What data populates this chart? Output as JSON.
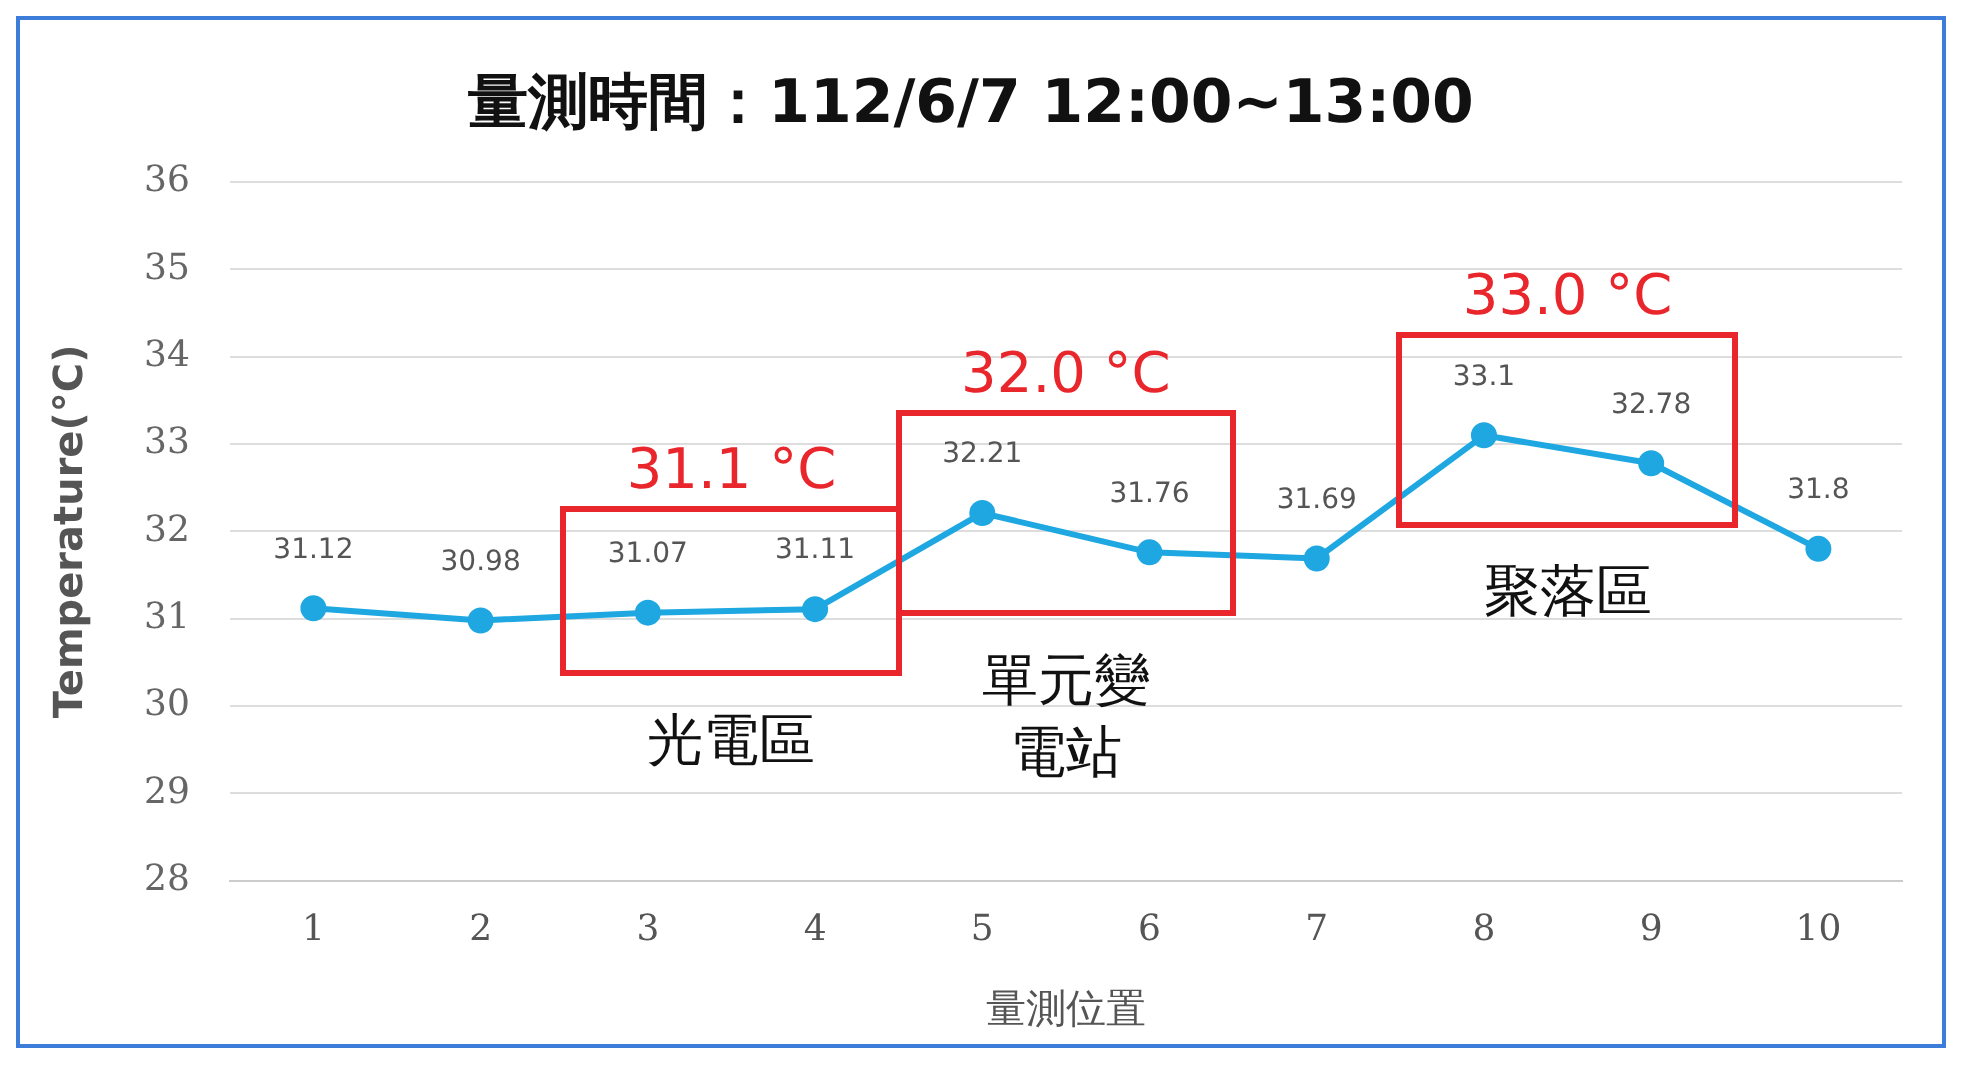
{
  "chart_data": {
    "type": "line",
    "title": "量測時間：112/6/7 12:00~13:00",
    "xlabel": "量測位置",
    "ylabel": "Temperature(°C)",
    "categories": [
      "1",
      "2",
      "3",
      "4",
      "5",
      "6",
      "7",
      "8",
      "9",
      "10"
    ],
    "series": [
      {
        "color": "#1ea7e1",
        "values": [
          31.12,
          30.98,
          31.07,
          31.11,
          32.21,
          31.76,
          31.69,
          33.1,
          32.78,
          31.8
        ]
      }
    ],
    "ylim": [
      28,
      36
    ],
    "yticks": [
      28,
      29,
      30,
      31,
      32,
      33,
      34,
      35,
      36
    ],
    "grid": "y",
    "marker": "circle",
    "line_style": "solid",
    "data_labels": true,
    "legend": false,
    "annotations": [
      "31.1 °C",
      "32.0 °C",
      "33.0 °C",
      "光電區",
      "單元變電站",
      "聚落區"
    ]
  }
}
